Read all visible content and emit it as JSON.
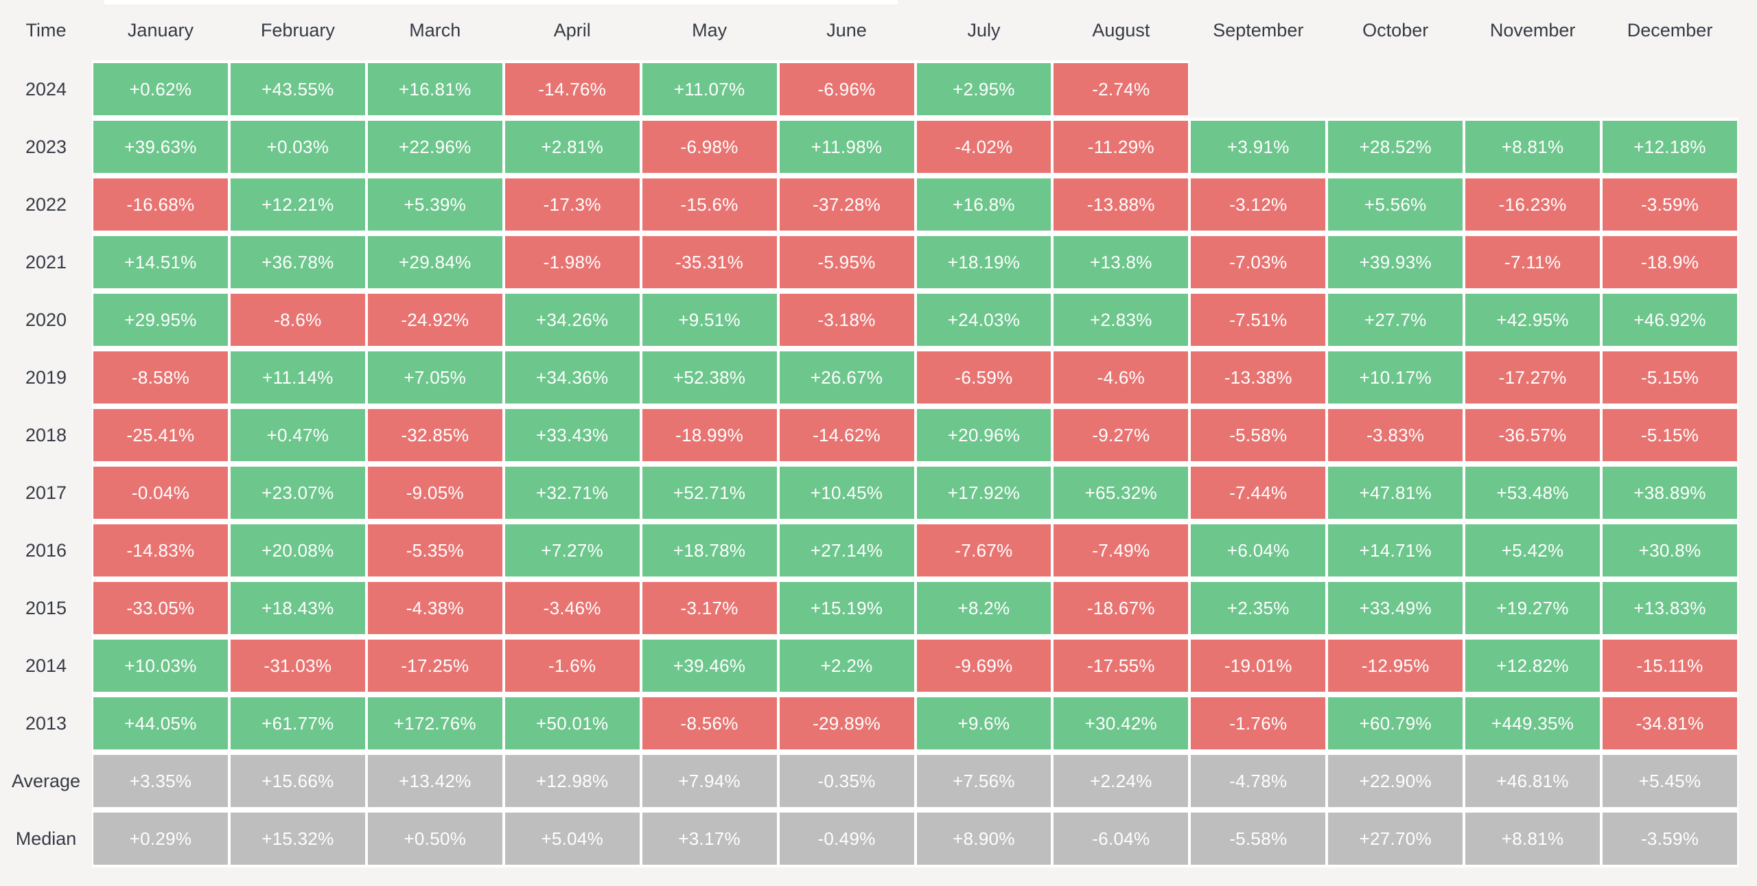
{
  "colors": {
    "positive": "#6dc68c",
    "negative": "#e87472",
    "neutral": "#bebebe",
    "page_bg": "#f5f4f2",
    "gap": "#ffffff",
    "header_text": "#363a45",
    "value_text": "#ffffff"
  },
  "chart_data": {
    "type": "heatmap",
    "corner_label": "Time",
    "x_labels": [
      "January",
      "February",
      "March",
      "April",
      "May",
      "June",
      "July",
      "August",
      "September",
      "October",
      "November",
      "December"
    ],
    "y_labels": [
      "2024",
      "2023",
      "2022",
      "2021",
      "2020",
      "2019",
      "2018",
      "2017",
      "2016",
      "2015",
      "2014",
      "2013",
      "Average",
      "Median"
    ],
    "legend": "green = positive month, red = negative month, gray = Average/Median summary rows, blank = no data",
    "rows": [
      {
        "label": "2024",
        "type": "year",
        "values": [
          "+0.62%",
          "+43.55%",
          "+16.81%",
          "-14.76%",
          "+11.07%",
          "-6.96%",
          "+2.95%",
          "-2.74%",
          "",
          "",
          "",
          ""
        ]
      },
      {
        "label": "2023",
        "type": "year",
        "values": [
          "+39.63%",
          "+0.03%",
          "+22.96%",
          "+2.81%",
          "-6.98%",
          "+11.98%",
          "-4.02%",
          "-11.29%",
          "+3.91%",
          "+28.52%",
          "+8.81%",
          "+12.18%"
        ]
      },
      {
        "label": "2022",
        "type": "year",
        "values": [
          "-16.68%",
          "+12.21%",
          "+5.39%",
          "-17.3%",
          "-15.6%",
          "-37.28%",
          "+16.8%",
          "-13.88%",
          "-3.12%",
          "+5.56%",
          "-16.23%",
          "-3.59%"
        ]
      },
      {
        "label": "2021",
        "type": "year",
        "values": [
          "+14.51%",
          "+36.78%",
          "+29.84%",
          "-1.98%",
          "-35.31%",
          "-5.95%",
          "+18.19%",
          "+13.8%",
          "-7.03%",
          "+39.93%",
          "-7.11%",
          "-18.9%"
        ]
      },
      {
        "label": "2020",
        "type": "year",
        "values": [
          "+29.95%",
          "-8.6%",
          "-24.92%",
          "+34.26%",
          "+9.51%",
          "-3.18%",
          "+24.03%",
          "+2.83%",
          "-7.51%",
          "+27.7%",
          "+42.95%",
          "+46.92%"
        ]
      },
      {
        "label": "2019",
        "type": "year",
        "values": [
          "-8.58%",
          "+11.14%",
          "+7.05%",
          "+34.36%",
          "+52.38%",
          "+26.67%",
          "-6.59%",
          "-4.6%",
          "-13.38%",
          "+10.17%",
          "-17.27%",
          "-5.15%"
        ]
      },
      {
        "label": "2018",
        "type": "year",
        "values": [
          "-25.41%",
          "+0.47%",
          "-32.85%",
          "+33.43%",
          "-18.99%",
          "-14.62%",
          "+20.96%",
          "-9.27%",
          "-5.58%",
          "-3.83%",
          "-36.57%",
          "-5.15%"
        ]
      },
      {
        "label": "2017",
        "type": "year",
        "values": [
          "-0.04%",
          "+23.07%",
          "-9.05%",
          "+32.71%",
          "+52.71%",
          "+10.45%",
          "+17.92%",
          "+65.32%",
          "-7.44%",
          "+47.81%",
          "+53.48%",
          "+38.89%"
        ]
      },
      {
        "label": "2016",
        "type": "year",
        "values": [
          "-14.83%",
          "+20.08%",
          "-5.35%",
          "+7.27%",
          "+18.78%",
          "+27.14%",
          "-7.67%",
          "-7.49%",
          "+6.04%",
          "+14.71%",
          "+5.42%",
          "+30.8%"
        ]
      },
      {
        "label": "2015",
        "type": "year",
        "values": [
          "-33.05%",
          "+18.43%",
          "-4.38%",
          "-3.46%",
          "-3.17%",
          "+15.19%",
          "+8.2%",
          "-18.67%",
          "+2.35%",
          "+33.49%",
          "+19.27%",
          "+13.83%"
        ]
      },
      {
        "label": "2014",
        "type": "year",
        "values": [
          "+10.03%",
          "-31.03%",
          "-17.25%",
          "-1.6%",
          "+39.46%",
          "+2.2%",
          "-9.69%",
          "-17.55%",
          "-19.01%",
          "-12.95%",
          "+12.82%",
          "-15.11%"
        ]
      },
      {
        "label": "2013",
        "type": "year",
        "values": [
          "+44.05%",
          "+61.77%",
          "+172.76%",
          "+50.01%",
          "-8.56%",
          "-29.89%",
          "+9.6%",
          "+30.42%",
          "-1.76%",
          "+60.79%",
          "+449.35%",
          "-34.81%"
        ]
      },
      {
        "label": "Average",
        "type": "stat",
        "values": [
          "+3.35%",
          "+15.66%",
          "+13.42%",
          "+12.98%",
          "+7.94%",
          "-0.35%",
          "+7.56%",
          "+2.24%",
          "-4.78%",
          "+22.90%",
          "+46.81%",
          "+5.45%"
        ]
      },
      {
        "label": "Median",
        "type": "stat",
        "values": [
          "+0.29%",
          "+15.32%",
          "+0.50%",
          "+5.04%",
          "+3.17%",
          "-0.49%",
          "+8.90%",
          "-6.04%",
          "-5.58%",
          "+27.70%",
          "+8.81%",
          "-3.59%"
        ]
      }
    ]
  }
}
